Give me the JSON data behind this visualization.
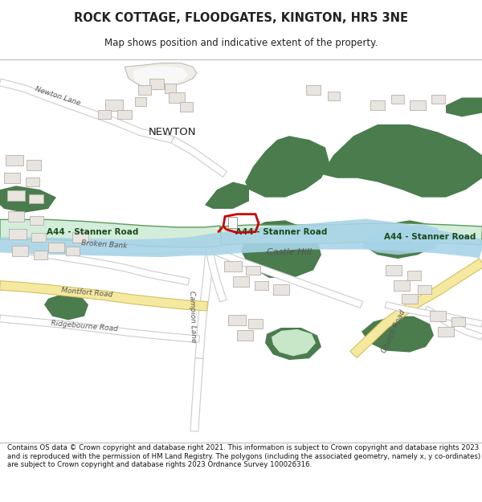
{
  "title": "ROCK COTTAGE, FLOODGATES, KINGTON, HR5 3NE",
  "subtitle": "Map shows position and indicative extent of the property.",
  "footer": "Contains OS data © Crown copyright and database right 2021. This information is subject to Crown copyright and database rights 2023 and is reproduced with the permission of HM Land Registry. The polygons (including the associated geometry, namely x, y co-ordinates) are subject to Crown copyright and database rights 2023 Ordnance Survey 100026316.",
  "map_bg": "#ffffff",
  "green_dark": "#4a7c4e",
  "green_light": "#b8ddb8",
  "a44_fill": "#d4edda",
  "a44_border": "#5a9a5a",
  "river_color": "#a8d4e8",
  "road_fill": "#ffffff",
  "road_edge": "#cccccc",
  "building_fill": "#e8e4df",
  "building_edge": "#b8b0a8",
  "yellow_road": "#f5e9a0",
  "yellow_edge": "#d4c060",
  "plot_red": "#cc0000",
  "text_dark": "#333333",
  "text_label": "#555555",
  "a44_text": "#1a4a1a"
}
